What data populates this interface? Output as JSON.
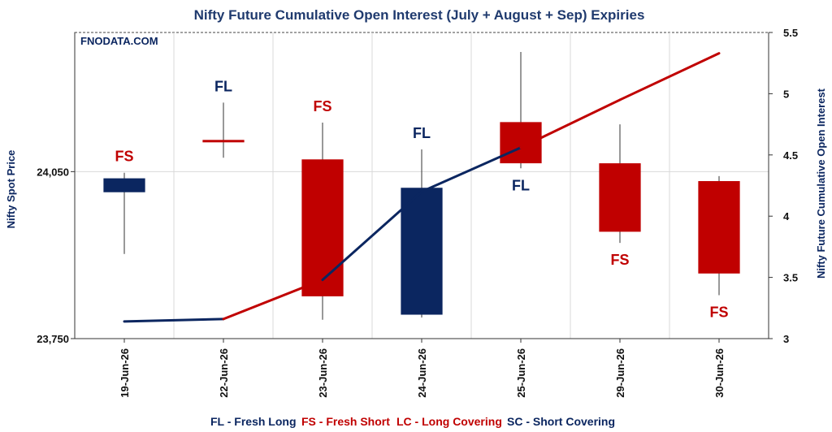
{
  "chart_data": {
    "type": "candlestick",
    "title": "Nifty Future Cumulative Open Interest (July + August + Sep) Expiries",
    "watermark": "FNODATA.COM",
    "ylabel_left": "Nifty Spot Price",
    "ylabel_right": "Nifty Future Cumulative Open Interest",
    "ylim_left": [
      23750,
      24300
    ],
    "yticks_left": [
      {
        "value": 23750,
        "label": "23,750"
      },
      {
        "value": 24050,
        "label": "24,050"
      }
    ],
    "ylim_right": [
      3,
      5.5
    ],
    "yticks_right": [
      {
        "value": 3,
        "label": "3"
      },
      {
        "value": 3.5,
        "label": "3.5"
      },
      {
        "value": 4,
        "label": "4"
      },
      {
        "value": 4.5,
        "label": "4.5"
      },
      {
        "value": 5,
        "label": "5"
      },
      {
        "value": 5.5,
        "label": "5.5"
      }
    ],
    "categories": [
      "19-Jun-26",
      "22-Jun-26",
      "23-Jun-26",
      "24-Jun-26",
      "25-Jun-26",
      "29-Jun-26",
      "30-Jun-26"
    ],
    "candles": [
      {
        "open": 24013,
        "close": 24038,
        "high": 24048,
        "low": 23902,
        "color": "#0b2660"
      },
      {
        "open": 24107,
        "close": 24104,
        "high": 24174,
        "low": 24075,
        "color": "#c00000"
      },
      {
        "open": 24072,
        "close": 23826,
        "high": 24138,
        "low": 23784,
        "color": "#c00000"
      },
      {
        "open": 23793,
        "close": 24021,
        "high": 24090,
        "low": 23788,
        "color": "#0b2660"
      },
      {
        "open": 24139,
        "close": 24065,
        "high": 24265,
        "low": 24056,
        "color": "#c00000"
      },
      {
        "open": 24065,
        "close": 23942,
        "high": 24135,
        "low": 23922,
        "color": "#c00000"
      },
      {
        "open": 24033,
        "close": 23867,
        "high": 24042,
        "low": 23828,
        "color": "#c00000"
      }
    ],
    "oi_series": {
      "name": "Nifty Future Cumulative Open Interest",
      "values": [
        3.14,
        3.16,
        3.48,
        4.2,
        4.56,
        4.95,
        5.33
      ],
      "segment_colors": [
        "#0b2660",
        "#c00000",
        "#0b2660",
        "#0b2660",
        "#c00000",
        "#c00000"
      ]
    },
    "annotations": [
      {
        "text": "FS",
        "color": "#c00000",
        "position": "above"
      },
      {
        "text": "FL",
        "color": "#0b2660",
        "position": "above"
      },
      {
        "text": "FS",
        "color": "#c00000",
        "position": "above"
      },
      {
        "text": "FL",
        "color": "#0b2660",
        "position": "above"
      },
      {
        "text": "FL",
        "color": "#0b2660",
        "position": "below"
      },
      {
        "text": "FS",
        "color": "#c00000",
        "position": "below"
      },
      {
        "text": "FS",
        "color": "#c00000",
        "position": "below"
      }
    ],
    "legend": {
      "placement": "bottom",
      "items": [
        {
          "text": "FL - Fresh Long",
          "color": "#0b2660"
        },
        {
          "text": "FS - Fresh Short",
          "color": "#c00000"
        },
        {
          "text": "LC - Long Covering",
          "color": "#c00000"
        },
        {
          "text": "SC - Short Covering",
          "color": "#0b2660"
        }
      ]
    },
    "grid": true
  }
}
